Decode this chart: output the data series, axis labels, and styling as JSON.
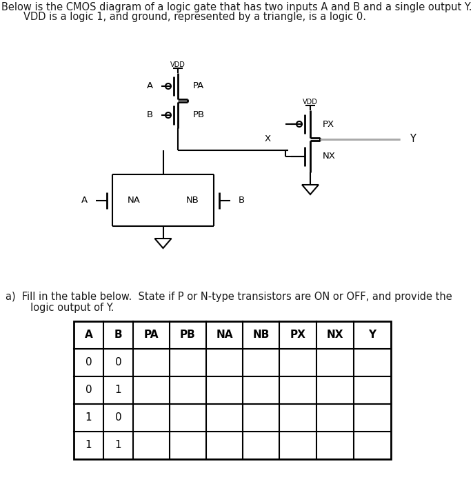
{
  "text_line1": "Below is the CMOS diagram of a logic gate that has two inputs A and B and a single output Y.",
  "text_line2": "VDD is a logic 1, and ground, represented by a triangle, is a logic 0.",
  "part_a_line1": "a)  Fill in the table below.  State if P or N-type transistors are ON or OFF, and provide the",
  "part_a_line2": "     logic output of Y.",
  "table_headers": [
    "A",
    "B",
    "PA",
    "PB",
    "NA",
    "NB",
    "PX",
    "NX",
    "Y"
  ],
  "table_rows": [
    [
      "0",
      "0",
      "",
      "",
      "",
      "",
      "",
      "",
      ""
    ],
    [
      "0",
      "1",
      "",
      "",
      "",
      "",
      "",
      "",
      ""
    ],
    [
      "1",
      "0",
      "",
      "",
      "",
      "",
      "",
      "",
      ""
    ],
    [
      "1",
      "1",
      "",
      "",
      "",
      "",
      "",
      "",
      ""
    ]
  ],
  "bg_color": "#ffffff",
  "line_color": "#000000",
  "gray_color": "#aaaaaa",
  "font_size_main": 10.5,
  "font_size_vdd": 7,
  "font_size_label": 9.5,
  "font_size_table": 11
}
